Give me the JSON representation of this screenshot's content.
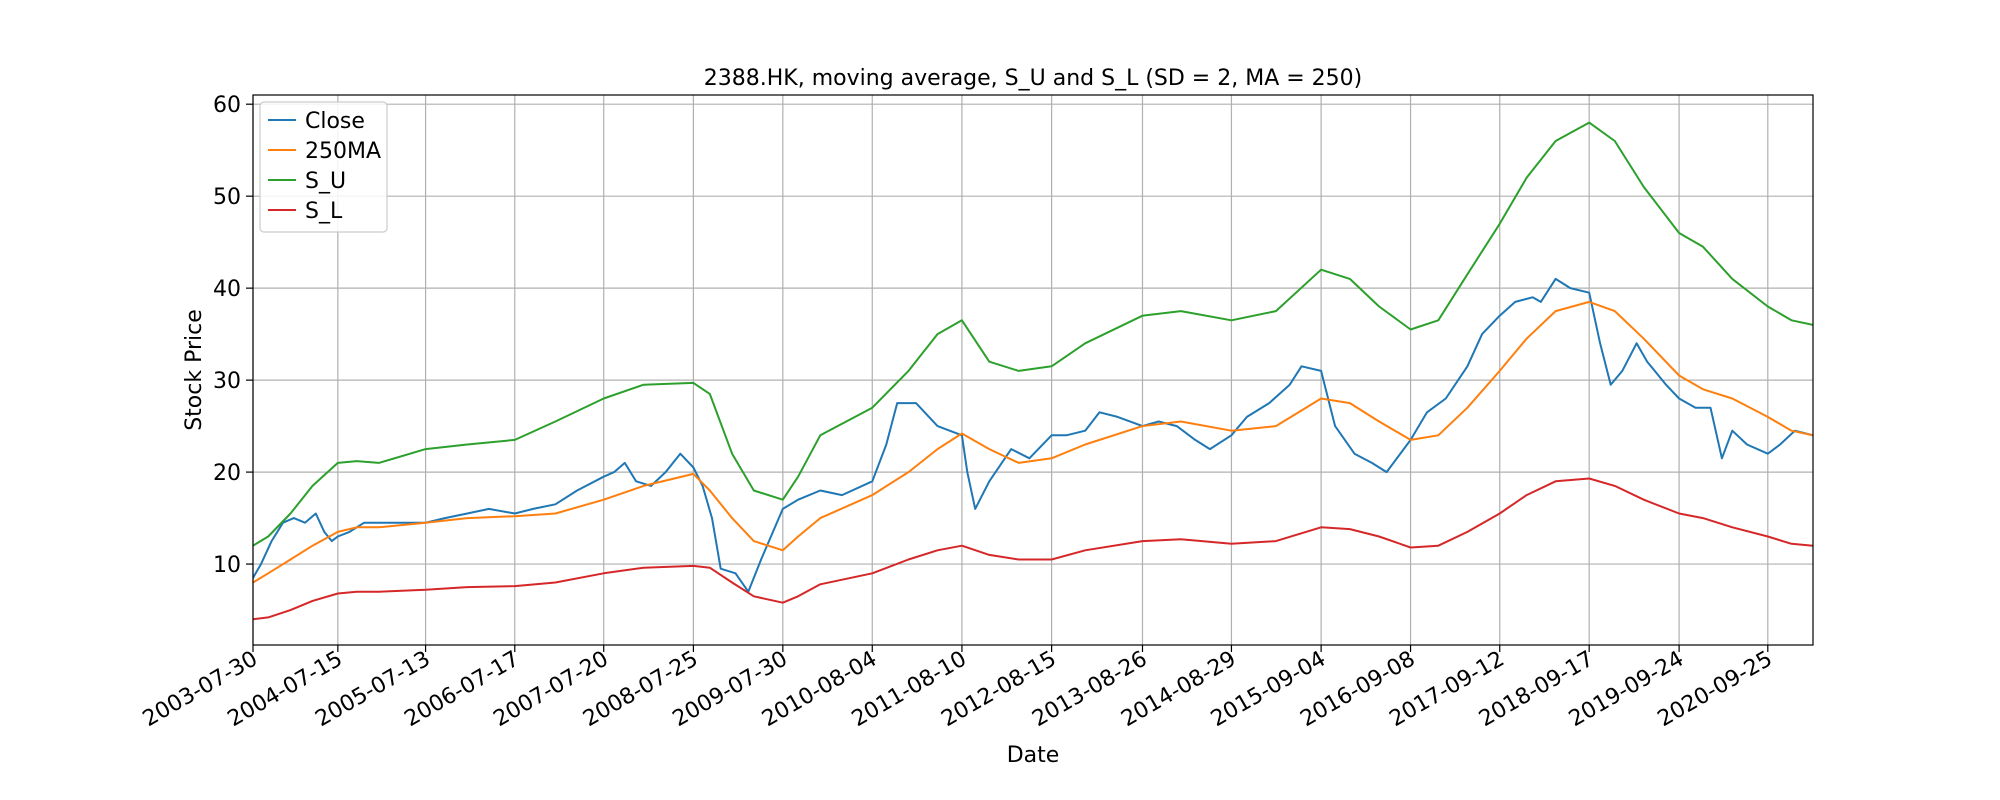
{
  "chart_data": {
    "type": "line",
    "title": "2388.HK, moving average, S_U and S_L (SD = 2, MA = 250)",
    "xlabel": "Date",
    "ylabel": "Stock Price",
    "xlim": [
      "2003-07-30",
      "2021-03-31"
    ],
    "ylim": [
      1.2,
      61.0
    ],
    "yticks": [
      10,
      20,
      30,
      40,
      50,
      60
    ],
    "xticks": [
      "2003-07-30",
      "2004-07-15",
      "2005-07-13",
      "2006-07-17",
      "2007-07-20",
      "2008-07-25",
      "2009-07-30",
      "2010-08-04",
      "2011-08-10",
      "2012-08-15",
      "2013-08-26",
      "2014-08-29",
      "2015-09-04",
      "2016-09-08",
      "2017-09-12",
      "2018-09-17",
      "2019-09-24",
      "2020-09-25"
    ],
    "grid": true,
    "legend_position": "top-left",
    "colors": {
      "close": "#1f77b4",
      "ma": "#ff7f0e",
      "su": "#2ca02c",
      "sl": "#d62728",
      "grid": "#b0b0b0"
    },
    "series": [
      {
        "name": "Close",
        "x": [
          "2003-07-30",
          "2003-09-01",
          "2003-10-15",
          "2003-12-01",
          "2004-01-15",
          "2004-03-01",
          "2004-04-15",
          "2004-05-20",
          "2004-06-20",
          "2004-07-15",
          "2004-09-01",
          "2004-11-01",
          "2005-01-15",
          "2005-04-01",
          "2005-07-13",
          "2005-10-01",
          "2006-01-01",
          "2006-04-01",
          "2006-07-17",
          "2006-10-01",
          "2007-01-01",
          "2007-04-01",
          "2007-07-20",
          "2007-09-01",
          "2007-10-15",
          "2007-12-01",
          "2008-02-01",
          "2008-04-01",
          "2008-06-01",
          "2008-07-25",
          "2008-09-01",
          "2008-10-10",
          "2008-11-15",
          "2009-01-15",
          "2009-03-09",
          "2009-05-01",
          "2009-07-30",
          "2009-10-01",
          "2010-01-01",
          "2010-04-01",
          "2010-08-04",
          "2010-10-01",
          "2010-11-15",
          "2011-02-01",
          "2011-05-01",
          "2011-08-10",
          "2011-09-01",
          "2011-10-04",
          "2011-12-01",
          "2012-03-01",
          "2012-05-15",
          "2012-08-15",
          "2012-10-15",
          "2013-01-01",
          "2013-03-01",
          "2013-05-15",
          "2013-08-26",
          "2013-11-01",
          "2014-01-15",
          "2014-04-01",
          "2014-06-01",
          "2014-08-29",
          "2014-11-01",
          "2015-02-01",
          "2015-04-27",
          "2015-06-15",
          "2015-09-04",
          "2015-11-01",
          "2016-01-20",
          "2016-04-01",
          "2016-06-01",
          "2016-09-08",
          "2016-11-15",
          "2017-02-01",
          "2017-05-01",
          "2017-07-01",
          "2017-09-12",
          "2017-11-15",
          "2018-01-26",
          "2018-03-01",
          "2018-05-01",
          "2018-07-01",
          "2018-09-17",
          "2018-11-01",
          "2018-12-15",
          "2019-02-01",
          "2019-04-01",
          "2019-05-15",
          "2019-08-01",
          "2019-09-24",
          "2019-12-01",
          "2020-02-01",
          "2020-03-19",
          "2020-05-01",
          "2020-07-01",
          "2020-09-25",
          "2020-11-15",
          "2021-01-15",
          "2021-03-31"
        ],
        "values": [
          8.5,
          10.0,
          12.5,
          14.5,
          15.0,
          14.5,
          15.5,
          13.5,
          12.5,
          13.0,
          13.5,
          14.5,
          14.5,
          14.5,
          14.5,
          15.0,
          15.5,
          16.0,
          15.5,
          16.0,
          16.5,
          18.0,
          19.5,
          20.0,
          21.0,
          19.0,
          18.5,
          20.0,
          22.0,
          20.5,
          18.5,
          15.0,
          9.5,
          9.0,
          7.0,
          10.5,
          16.0,
          17.0,
          18.0,
          17.5,
          19.0,
          23.0,
          27.5,
          27.5,
          25.0,
          24.0,
          20.0,
          16.0,
          19.0,
          22.5,
          21.5,
          24.0,
          24.0,
          24.5,
          26.5,
          26.0,
          25.0,
          25.5,
          25.0,
          23.5,
          22.5,
          24.0,
          26.0,
          27.5,
          29.5,
          31.5,
          31.0,
          25.0,
          22.0,
          21.0,
          20.0,
          23.5,
          26.5,
          28.0,
          31.5,
          35.0,
          37.0,
          38.5,
          39.0,
          38.5,
          41.0,
          40.0,
          39.5,
          34.0,
          29.5,
          31.0,
          34.0,
          32.0,
          29.5,
          28.0,
          27.0,
          27.0,
          21.5,
          24.5,
          23.0,
          22.0,
          23.0,
          24.5,
          24.0
        ]
      },
      {
        "name": "250MA",
        "x": [
          "2003-07-30",
          "2003-10-01",
          "2004-01-01",
          "2004-04-01",
          "2004-07-15",
          "2004-10-01",
          "2005-01-01",
          "2005-07-13",
          "2006-01-01",
          "2006-07-17",
          "2007-01-01",
          "2007-07-20",
          "2008-01-01",
          "2008-07-25",
          "2008-10-01",
          "2009-01-01",
          "2009-04-01",
          "2009-07-30",
          "2009-10-01",
          "2010-01-01",
          "2010-08-04",
          "2011-01-01",
          "2011-05-01",
          "2011-08-10",
          "2011-12-01",
          "2012-04-01",
          "2012-08-15",
          "2013-01-01",
          "2013-08-26",
          "2014-02-01",
          "2014-08-29",
          "2015-03-01",
          "2015-09-04",
          "2016-01-01",
          "2016-05-01",
          "2016-09-08",
          "2017-01-01",
          "2017-05-01",
          "2017-09-12",
          "2018-01-01",
          "2018-05-01",
          "2018-09-17",
          "2019-01-01",
          "2019-05-01",
          "2019-09-24",
          "2020-01-01",
          "2020-05-01",
          "2020-09-25",
          "2021-01-01",
          "2021-03-31"
        ],
        "values": [
          8.0,
          9.0,
          10.5,
          12.0,
          13.5,
          14.0,
          14.0,
          14.5,
          15.0,
          15.2,
          15.5,
          17.0,
          18.5,
          19.8,
          18.0,
          15.0,
          12.5,
          11.5,
          13.0,
          15.0,
          17.5,
          20.0,
          22.5,
          24.2,
          22.5,
          21.0,
          21.5,
          23.0,
          25.0,
          25.5,
          24.5,
          25.0,
          28.0,
          27.5,
          25.5,
          23.5,
          24.0,
          27.0,
          31.0,
          34.5,
          37.5,
          38.5,
          37.5,
          34.5,
          30.5,
          29.0,
          28.0,
          26.0,
          24.5,
          24.0
        ]
      },
      {
        "name": "S_U",
        "x": [
          "2003-07-30",
          "2003-10-01",
          "2004-01-01",
          "2004-04-01",
          "2004-07-15",
          "2004-10-01",
          "2005-01-01",
          "2005-07-13",
          "2006-01-01",
          "2006-07-17",
          "2007-01-01",
          "2007-07-20",
          "2008-01-01",
          "2008-07-25",
          "2008-10-01",
          "2009-01-01",
          "2009-04-01",
          "2009-07-30",
          "2009-10-01",
          "2010-01-01",
          "2010-08-04",
          "2011-01-01",
          "2011-05-01",
          "2011-08-10",
          "2011-12-01",
          "2012-04-01",
          "2012-08-15",
          "2013-01-01",
          "2013-08-26",
          "2014-02-01",
          "2014-08-29",
          "2015-03-01",
          "2015-09-04",
          "2016-01-01",
          "2016-05-01",
          "2016-09-08",
          "2017-01-01",
          "2017-05-01",
          "2017-09-12",
          "2018-01-01",
          "2018-05-01",
          "2018-09-17",
          "2019-01-01",
          "2019-05-01",
          "2019-09-24",
          "2020-01-01",
          "2020-05-01",
          "2020-09-25",
          "2021-01-01",
          "2021-03-31"
        ],
        "values": [
          12.0,
          13.0,
          15.5,
          18.5,
          21.0,
          21.2,
          21.0,
          22.5,
          23.0,
          23.5,
          25.5,
          28.0,
          29.5,
          29.7,
          28.5,
          22.0,
          18.0,
          17.0,
          19.5,
          24.0,
          27.0,
          31.0,
          35.0,
          36.5,
          32.0,
          31.0,
          31.5,
          34.0,
          37.0,
          37.5,
          36.5,
          37.5,
          42.0,
          41.0,
          38.0,
          35.5,
          36.5,
          41.5,
          47.0,
          52.0,
          56.0,
          58.0,
          56.0,
          51.0,
          46.0,
          44.5,
          41.0,
          38.0,
          36.5,
          36.0
        ]
      },
      {
        "name": "S_L",
        "x": [
          "2003-07-30",
          "2003-10-01",
          "2004-01-01",
          "2004-04-01",
          "2004-07-15",
          "2004-10-01",
          "2005-01-01",
          "2005-07-13",
          "2006-01-01",
          "2006-07-17",
          "2007-01-01",
          "2007-07-20",
          "2008-01-01",
          "2008-07-25",
          "2008-10-01",
          "2009-01-01",
          "2009-04-01",
          "2009-07-30",
          "2009-10-01",
          "2010-01-01",
          "2010-08-04",
          "2011-01-01",
          "2011-05-01",
          "2011-08-10",
          "2011-12-01",
          "2012-04-01",
          "2012-08-15",
          "2013-01-01",
          "2013-08-26",
          "2014-02-01",
          "2014-08-29",
          "2015-03-01",
          "2015-09-04",
          "2016-01-01",
          "2016-05-01",
          "2016-09-08",
          "2017-01-01",
          "2017-05-01",
          "2017-09-12",
          "2018-01-01",
          "2018-05-01",
          "2018-09-17",
          "2019-01-01",
          "2019-05-01",
          "2019-09-24",
          "2020-01-01",
          "2020-05-01",
          "2020-09-25",
          "2021-01-01",
          "2021-03-31"
        ],
        "values": [
          4.0,
          4.2,
          5.0,
          6.0,
          6.8,
          7.0,
          7.0,
          7.2,
          7.5,
          7.6,
          8.0,
          9.0,
          9.6,
          9.8,
          9.6,
          8.0,
          6.5,
          5.8,
          6.5,
          7.8,
          9.0,
          10.5,
          11.5,
          12.0,
          11.0,
          10.5,
          10.5,
          11.5,
          12.5,
          12.7,
          12.2,
          12.5,
          14.0,
          13.8,
          13.0,
          11.8,
          12.0,
          13.5,
          15.5,
          17.5,
          19.0,
          19.3,
          18.5,
          17.0,
          15.5,
          15.0,
          14.0,
          13.0,
          12.2,
          12.0
        ]
      }
    ]
  }
}
